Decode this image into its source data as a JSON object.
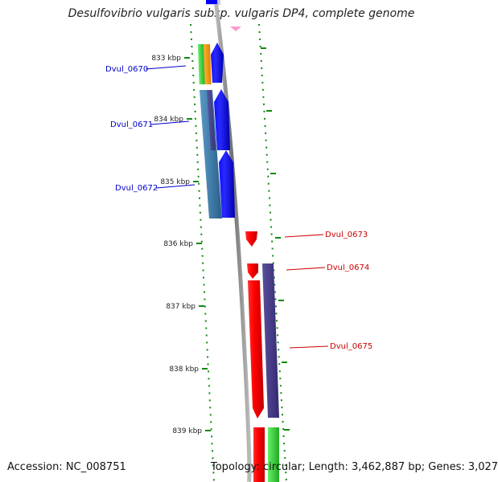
{
  "title": "Desulfovibrio vulgaris subsp. vulgaris DP4, complete genome",
  "footer": {
    "accession": "Accession: NC_008751",
    "topology": "Topology: circular; Length: 3,462,887 bp; Genes: 3,027"
  },
  "kbp_ticks": [
    "833 kbp",
    "834 kbp",
    "835 kbp",
    "836 kbp",
    "837 kbp",
    "838 kbp",
    "839 kbp"
  ],
  "genes_left": [
    {
      "name": "Dvul_0670",
      "color": "#0000cc"
    },
    {
      "name": "Dvul_0671",
      "color": "#0000cc"
    },
    {
      "name": "Dvul_0672",
      "color": "#0000cc"
    }
  ],
  "genes_right": [
    {
      "name": "Dvul_0673",
      "color": "#cc0000"
    },
    {
      "name": "Dvul_0674",
      "color": "#cc0000"
    },
    {
      "name": "Dvul_0675",
      "color": "#cc0000"
    }
  ],
  "colors": {
    "backbone": "#888888",
    "tick": "#118811",
    "forward_strand": "#0000ff",
    "reverse_strand": "#ff0000",
    "cog_purple": "#4a3f8c",
    "cog_steelblue": "#3a7aa8",
    "cog_green": "#44cc44",
    "cog_orange": "#ff9900",
    "marker_pink": "#ff99cc"
  }
}
